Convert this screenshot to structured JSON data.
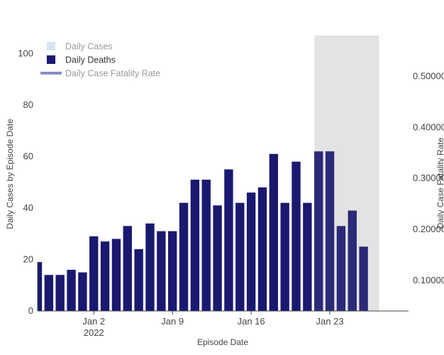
{
  "chart_data": {
    "type": "bar",
    "xlabel": "Episode Date",
    "ylabel": "Daily Cases by Episode Date",
    "y2label": "Daily Case Fatality Rate",
    "ylim": [
      0,
      107
    ],
    "y2lim": [
      0.04,
      0.58
    ],
    "yticks": [
      0,
      20,
      40,
      60,
      80,
      100
    ],
    "y2ticks": [
      "0.10000",
      "0.20000",
      "0.30000",
      "0.40000",
      "0.50000"
    ],
    "y2tick_values": [
      0.1,
      0.2,
      0.3,
      0.4,
      0.5
    ],
    "x_range": [
      "2021-12-28",
      "2022-01-30"
    ],
    "x_ticks": [
      {
        "date": "2022-01-02",
        "label": "Jan 2",
        "sublabel": "2022"
      },
      {
        "date": "2022-01-09",
        "label": "Jan 9",
        "sublabel": ""
      },
      {
        "date": "2022-01-16",
        "label": "Jan 16",
        "sublabel": ""
      },
      {
        "date": "2022-01-23",
        "label": "Jan 23",
        "sublabel": ""
      }
    ],
    "shaded_region": [
      "2022-01-22",
      "2022-01-27"
    ],
    "series": [
      {
        "name": "Daily Cases",
        "values": []
      },
      {
        "name": "Daily Deaths",
        "dates": [
          "2021-12-28",
          "2021-12-29",
          "2021-12-30",
          "2021-12-31",
          "2022-01-01",
          "2022-01-02",
          "2022-01-03",
          "2022-01-04",
          "2022-01-05",
          "2022-01-06",
          "2022-01-07",
          "2022-01-08",
          "2022-01-09",
          "2022-01-10",
          "2022-01-11",
          "2022-01-12",
          "2022-01-13",
          "2022-01-14",
          "2022-01-15",
          "2022-01-16",
          "2022-01-17",
          "2022-01-18",
          "2022-01-19",
          "2022-01-20",
          "2022-01-21",
          "2022-01-22",
          "2022-01-23",
          "2022-01-24",
          "2022-01-25",
          "2022-01-26"
        ],
        "values": [
          19,
          14,
          14,
          16,
          15,
          29,
          27,
          28,
          33,
          24,
          34,
          31,
          31,
          42,
          51,
          51,
          41,
          55,
          42,
          46,
          48,
          61,
          42,
          58,
          42,
          62,
          62,
          33,
          39,
          25
        ]
      },
      {
        "name": "Daily Case Fatality Rate",
        "values": []
      }
    ],
    "legend": {
      "position": "top-left",
      "items": [
        {
          "name": "Daily Cases",
          "color": "#d4e6f1",
          "symbol": "square",
          "text_color": "#999999"
        },
        {
          "name": "Daily Deaths",
          "color": "#191970",
          "symbol": "square",
          "text_color": "#333333"
        },
        {
          "name": "Daily Case Fatality Rate",
          "color": "#8c8cc4",
          "symbol": "line",
          "text_color": "#999999"
        }
      ]
    },
    "colors": {
      "deaths": "#191970",
      "deaths_in_shade": "#2a2a78",
      "shade": "#e3e3e3",
      "axis": "#444444"
    }
  }
}
